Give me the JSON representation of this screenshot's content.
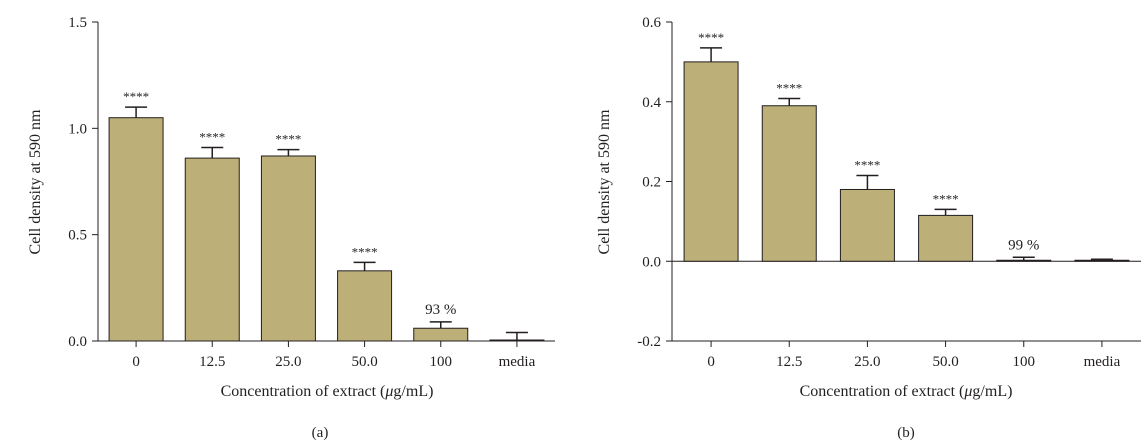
{
  "chart_data": [
    {
      "type": "bar",
      "panel_label": "(a)",
      "categories": [
        "0",
        "12.5",
        "25.0",
        "50.0",
        "100",
        "media"
      ],
      "values": [
        1.05,
        0.86,
        0.87,
        0.33,
        0.06,
        0.0
      ],
      "errors": [
        0.05,
        0.05,
        0.03,
        0.04,
        0.03,
        0.04
      ],
      "annotations": [
        "****",
        "****",
        "****",
        "****",
        "93 %",
        ""
      ],
      "xlabel_prefix": "Concentration of extract (",
      "xlabel_mu": "μ",
      "xlabel_suffix": "g/mL)",
      "ylabel": "Cell density at 590 nm",
      "ylim": [
        0,
        1.5
      ],
      "yticks": [
        "0.0",
        "0.5",
        "1.0",
        "1.5"
      ],
      "ytick_values": [
        0,
        0.5,
        1.0,
        1.5
      ],
      "bar_color": "#bcaf78",
      "grid": false
    },
    {
      "type": "bar",
      "panel_label": "(b)",
      "categories": [
        "0",
        "12.5",
        "25.0",
        "50.0",
        "100",
        "media"
      ],
      "values": [
        0.5,
        0.39,
        0.18,
        0.115,
        0.002,
        0.002
      ],
      "errors": [
        0.035,
        0.018,
        0.035,
        0.015,
        0.008,
        0.003
      ],
      "annotations": [
        "****",
        "****",
        "****",
        "****",
        "99 %",
        ""
      ],
      "xlabel_prefix": "Concentration of extract (",
      "xlabel_mu": "μ",
      "xlabel_suffix": "g/mL)",
      "ylabel": "Cell density at 590 nm",
      "ylim": [
        -0.2,
        0.6
      ],
      "yticks": [
        "-0.2",
        "0.0",
        "0.2",
        "0.4",
        "0.6"
      ],
      "ytick_values": [
        -0.2,
        0,
        0.2,
        0.4,
        0.6
      ],
      "bar_color": "#bcaf78",
      "grid": false
    }
  ]
}
